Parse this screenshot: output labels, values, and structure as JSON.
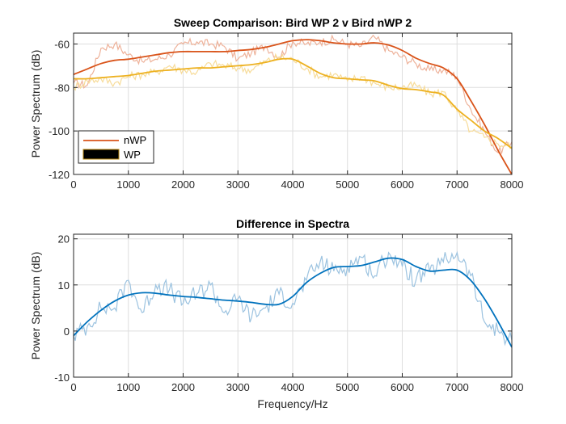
{
  "chart_data": [
    {
      "type": "line",
      "title": "Sweep Comparison: Bird WP 2 v Bird nWP 2",
      "xlabel": "",
      "ylabel": "Power Spectrum (dB)",
      "xlim": [
        0,
        8000
      ],
      "ylim": [
        -120,
        -55
      ],
      "xticks": [
        0,
        1000,
        2000,
        3000,
        4000,
        5000,
        6000,
        7000,
        8000
      ],
      "yticks": [
        -120,
        -100,
        -80,
        -60
      ],
      "grid": true,
      "legend_position": "bottom-left",
      "legend": [
        "nWP",
        "WP"
      ],
      "series": [
        {
          "name": "nWP",
          "color": "#d95319",
          "raw_color": "#eeb29a",
          "x": [
            0,
            250,
            500,
            750,
            1000,
            1250,
            1500,
            1750,
            2000,
            2250,
            2500,
            2750,
            3000,
            3250,
            3500,
            3750,
            4000,
            4250,
            4500,
            4750,
            5000,
            5250,
            5500,
            5750,
            6000,
            6250,
            6500,
            6750,
            7000,
            7250,
            7500,
            7750,
            8000
          ],
          "values": [
            -74,
            -71.5,
            -69,
            -67.5,
            -67,
            -66,
            -65,
            -64,
            -63.5,
            -63.5,
            -63.5,
            -63.5,
            -63,
            -62.5,
            -61.5,
            -60,
            -58.5,
            -58,
            -58.5,
            -59.5,
            -60,
            -60,
            -59.5,
            -60.5,
            -63,
            -66.5,
            -69,
            -71,
            -76,
            -86,
            -97,
            -109,
            -120
          ],
          "raw_values": [
            -78,
            -79,
            -62,
            -60,
            -65,
            -68,
            -67,
            -65,
            -60,
            -59,
            -60,
            -61,
            -67,
            -64,
            -61,
            -66,
            -59,
            -60,
            -59,
            -58,
            -60,
            -61,
            -57,
            -63,
            -66,
            -69,
            -72,
            -72,
            -75,
            -90,
            -100,
            -110,
            -105
          ]
        },
        {
          "name": "WP",
          "color": "#edb120",
          "raw_color": "#f7dc9a",
          "x": [
            0,
            250,
            500,
            750,
            1000,
            1250,
            1500,
            1750,
            2000,
            2250,
            2500,
            2750,
            3000,
            3250,
            3500,
            3750,
            4000,
            4250,
            4500,
            4750,
            5000,
            5250,
            5500,
            5750,
            6000,
            6250,
            6500,
            6750,
            7000,
            7250,
            7500,
            7750,
            8000
          ],
          "values": [
            -76,
            -76,
            -75.5,
            -75,
            -74.5,
            -73.5,
            -72.5,
            -72,
            -71.5,
            -71,
            -71,
            -70.5,
            -70,
            -69.5,
            -68.5,
            -67,
            -67,
            -70,
            -73.5,
            -75.5,
            -76,
            -76.5,
            -77,
            -79,
            -80.5,
            -81,
            -82,
            -83.5,
            -90,
            -95,
            -100,
            -103.5,
            -108
          ],
          "raw_values": [
            -80,
            -77,
            -76,
            -78,
            -75,
            -74,
            -73,
            -70,
            -72,
            -73,
            -69,
            -70,
            -71,
            -72,
            -68,
            -66,
            -67,
            -71,
            -75,
            -74,
            -77,
            -75,
            -78,
            -80,
            -80,
            -79,
            -83,
            -82,
            -91,
            -100,
            -103,
            -106,
            -107
          ]
        }
      ]
    },
    {
      "type": "line",
      "title": "Difference in Spectra",
      "xlabel": "Frequency/Hz",
      "ylabel": "Power Spectrum (dB)",
      "xlim": [
        0,
        8000
      ],
      "ylim": [
        -10,
        21
      ],
      "xticks": [
        0,
        1000,
        2000,
        3000,
        4000,
        5000,
        6000,
        7000,
        8000
      ],
      "yticks": [
        -10,
        0,
        10,
        20
      ],
      "grid": true,
      "series": [
        {
          "color": "#0072bd",
          "raw_color": "#9cc3e0",
          "x": [
            0,
            250,
            500,
            750,
            1000,
            1250,
            1500,
            1750,
            2000,
            2250,
            2500,
            2750,
            3000,
            3250,
            3500,
            3750,
            4000,
            4250,
            4500,
            4750,
            5000,
            5250,
            5500,
            5750,
            6000,
            6250,
            6500,
            6750,
            7000,
            7250,
            7500,
            7750,
            8000
          ],
          "values": [
            -1,
            2,
            4.5,
            6.5,
            7.8,
            8.3,
            8.2,
            7.8,
            7.5,
            7.3,
            7,
            6.7,
            6.5,
            6.2,
            5.8,
            5.8,
            7.5,
            10.5,
            12.5,
            13.8,
            14,
            14.2,
            15,
            15.8,
            15.5,
            14,
            13,
            13.2,
            13.2,
            11,
            7,
            2,
            -3.5
          ],
          "raw_values": [
            -1,
            1,
            5,
            5,
            11,
            4,
            10,
            9,
            6,
            8,
            10,
            4,
            7,
            3,
            5,
            8,
            6,
            11,
            15,
            13,
            14,
            16,
            12,
            17,
            14,
            11,
            13,
            15,
            17,
            12,
            2,
            0,
            -2
          ]
        }
      ]
    }
  ]
}
